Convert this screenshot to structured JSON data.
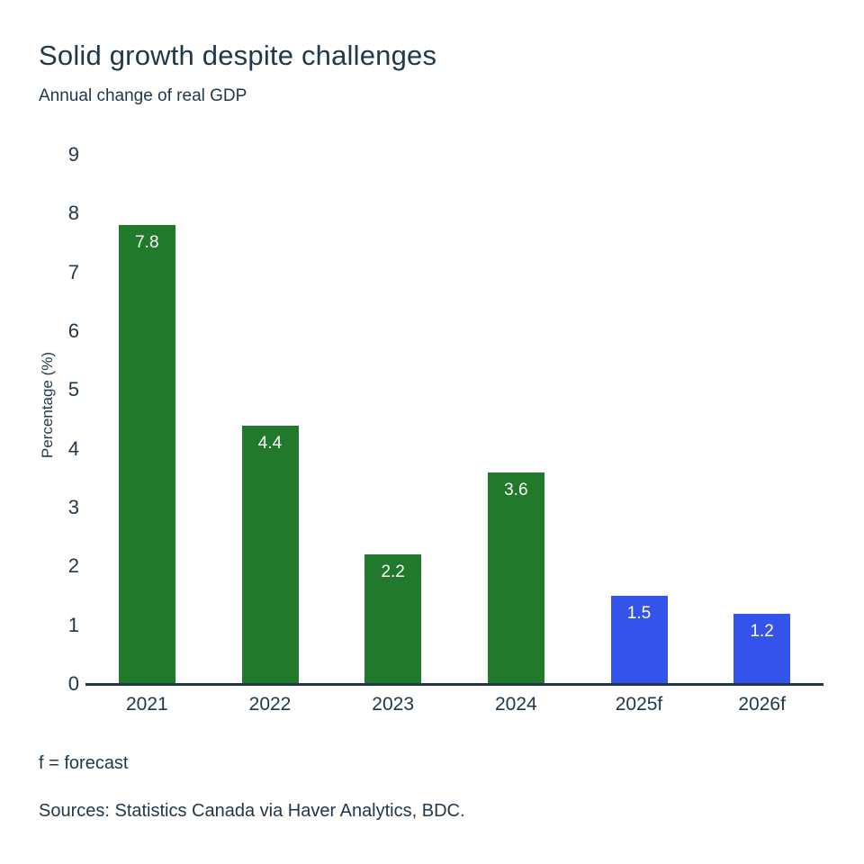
{
  "header": {
    "title": "Solid growth despite challenges",
    "subtitle": "Annual change of real GDP"
  },
  "chart_data": {
    "type": "bar",
    "title": "Solid growth despite challenges",
    "subtitle": "Annual change of real GDP",
    "categories": [
      "2021",
      "2022",
      "2023",
      "2024",
      "2025f",
      "2026f"
    ],
    "values": [
      7.8,
      4.4,
      2.2,
      3.6,
      1.5,
      1.2
    ],
    "value_labels": [
      "7.8",
      "4.4",
      "2.2",
      "3.6",
      "1.5",
      "1.2"
    ],
    "bar_colors": [
      "#217a2b",
      "#217a2b",
      "#217a2b",
      "#217a2b",
      "#3353eb",
      "#3353eb"
    ],
    "xlabel": "",
    "ylabel": "Percentage (%)",
    "ylim": [
      0,
      9
    ],
    "yticks": [
      0,
      1,
      2,
      3,
      4,
      5,
      6,
      7,
      8,
      9
    ],
    "grid": false,
    "legend": "none",
    "colors": {
      "actual": "#217a2b",
      "forecast": "#3353eb",
      "axis": "#1f3648",
      "text": "#21384a",
      "value_label": "#ffffff",
      "background": "#ffffff"
    }
  },
  "footer": {
    "forecast_note": "f = forecast",
    "sources": "Sources: Statistics Canada via Haver Analytics, BDC."
  }
}
